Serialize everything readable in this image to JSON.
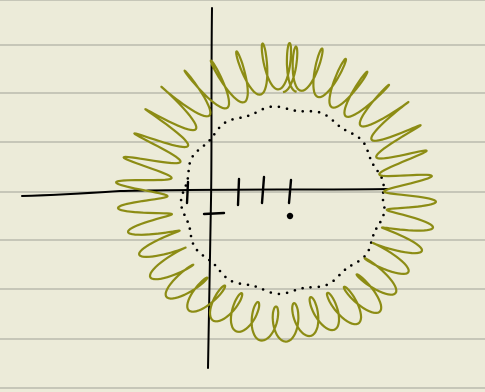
{
  "canvas": {
    "paper_color": "#ECEBD9",
    "rule_color": "#AEB1A4",
    "axis_color": "#000000",
    "dot_color": "#000000",
    "scribble_color": "#8C8C14"
  },
  "drawing": {
    "ruled_lines": 8,
    "axis_tick_marks": 4,
    "scribble_wave_count": 38,
    "dotted_circle": true,
    "center_point": true
  }
}
